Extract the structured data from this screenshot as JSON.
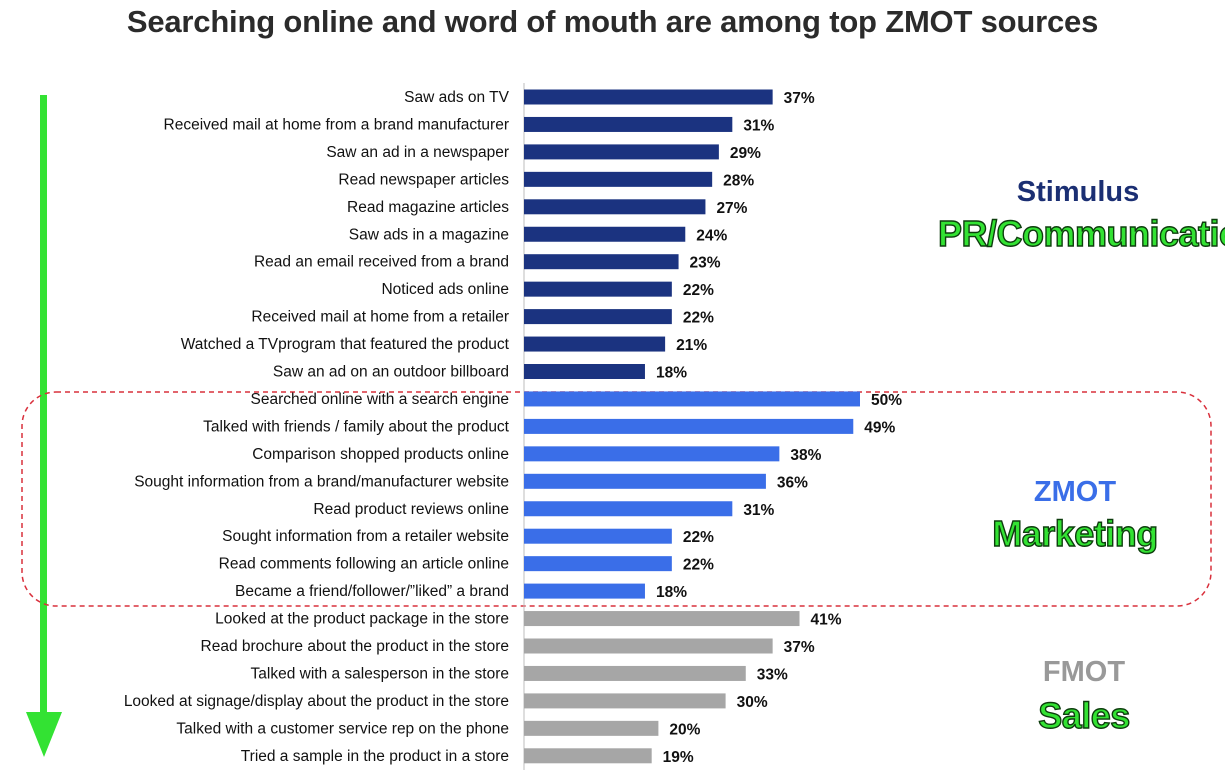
{
  "title": "Searching online and word of mouth are among top ZMOT sources",
  "colors": {
    "stimulus": "#1b3380",
    "zmot": "#3a6ee8",
    "fmot": "#a6a6a6",
    "arrow": "#33e233",
    "box": "#d9303c"
  },
  "groups": [
    {
      "name": "Stimulus",
      "subtitle": "PR/Communications",
      "name_color": "#1b2f73"
    },
    {
      "name": "ZMOT",
      "subtitle": "Marketing",
      "name_color": "#3a6ee8"
    },
    {
      "name": "FMOT",
      "subtitle": "Sales",
      "name_color": "#999999"
    }
  ],
  "chart_data": {
    "type": "bar",
    "orientation": "horizontal",
    "value_format": "percent",
    "categories": [
      "Saw ads on TV",
      "Received mail at home from a brand manufacturer",
      "Saw an ad in a newspaper",
      "Read newspaper articles",
      "Read magazine articles",
      "Saw ads in a magazine",
      "Read an email received from a brand",
      "Noticed ads online",
      "Received mail at home from a retailer",
      "Watched a TVprogram that featured the product",
      "Saw an ad on an outdoor billboard",
      "Searched online with a search engine",
      "Talked with friends / family about the product",
      "Comparison shopped products online",
      "Sought information from a brand/manufacturer website",
      "Read product reviews online",
      "Sought information from a retailer website",
      "Read comments following an article online",
      "Became a friend/follower/”liked” a brand",
      "Looked at the product package in the store",
      "Read brochure about the product in the store",
      "Talked with a salesperson in the store",
      "Looked at signage/display about the product in the store",
      "Talked with a customer service rep on the phone",
      "Tried a sample in the product in a store"
    ],
    "values": [
      37,
      31,
      29,
      28,
      27,
      24,
      23,
      22,
      22,
      21,
      18,
      50,
      49,
      38,
      36,
      31,
      22,
      22,
      18,
      41,
      37,
      33,
      30,
      20,
      19
    ],
    "data_labels": [
      "37%",
      "31%",
      "29%",
      "28%",
      "27%",
      "24%",
      "23%",
      "22%",
      "22%",
      "21%",
      "18%",
      "50%",
      "49%",
      "38%",
      "36%",
      "31%",
      "22%",
      "22%",
      "18%",
      "41%",
      "37%",
      "33%",
      "30%",
      "20%",
      "19%"
    ],
    "group_of_bar": [
      0,
      0,
      0,
      0,
      0,
      0,
      0,
      0,
      0,
      0,
      0,
      1,
      1,
      1,
      1,
      1,
      1,
      1,
      1,
      2,
      2,
      2,
      2,
      2,
      2
    ],
    "xlim": [
      0,
      100
    ],
    "grid": false,
    "legend": "none"
  }
}
